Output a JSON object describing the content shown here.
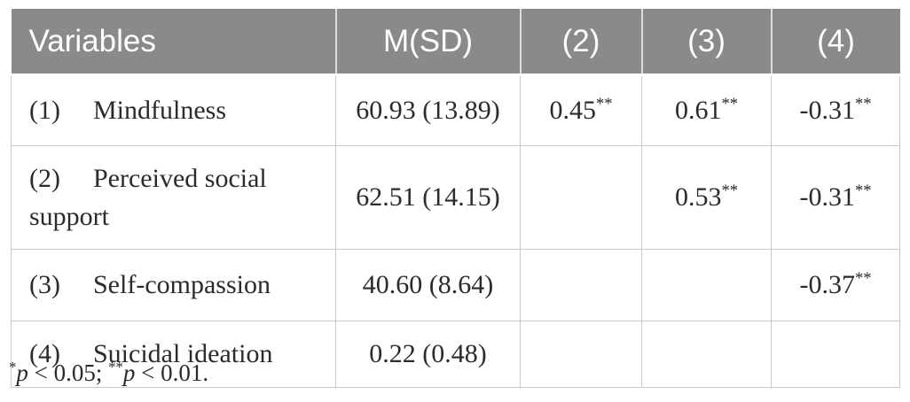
{
  "colors": {
    "header_bg": "#8a8a8a",
    "header_text": "#ffffff",
    "body_text": "#2b2b2b",
    "border": "#c9c9c9"
  },
  "header": {
    "variables": "Variables",
    "msd": "M(SD)",
    "c2": "(2)",
    "c3": "(3)",
    "c4": "(4)"
  },
  "rows": [
    {
      "num": "(1)",
      "name": "Mindfulness",
      "msd": "60.93 (13.89)",
      "cells": [
        {
          "value": "0.45",
          "sig": "**"
        },
        {
          "value": "0.61",
          "sig": "**"
        },
        {
          "value": "-0.31",
          "sig": "**"
        }
      ]
    },
    {
      "num": "(2)",
      "name": "Perceived social support",
      "msd": "62.51 (14.15)",
      "cells": [
        {
          "value": "",
          "sig": ""
        },
        {
          "value": "0.53",
          "sig": "**"
        },
        {
          "value": "-0.31",
          "sig": "**"
        }
      ]
    },
    {
      "num": "(3)",
      "name": "Self-compassion",
      "msd": "40.60 (8.64)",
      "cells": [
        {
          "value": "",
          "sig": ""
        },
        {
          "value": "",
          "sig": ""
        },
        {
          "value": "-0.37",
          "sig": "**"
        }
      ]
    },
    {
      "num": "(4)",
      "name": "Suicidal ideation",
      "msd": "0.22 (0.48)",
      "cells": [
        {
          "value": "",
          "sig": ""
        },
        {
          "value": "",
          "sig": ""
        },
        {
          "value": "",
          "sig": ""
        }
      ]
    }
  ],
  "footnote": {
    "sig1": "*",
    "p1": "p",
    "cond1": " < 0.05; ",
    "sig2": "**",
    "p2": "p",
    "cond2": " < 0.01."
  }
}
